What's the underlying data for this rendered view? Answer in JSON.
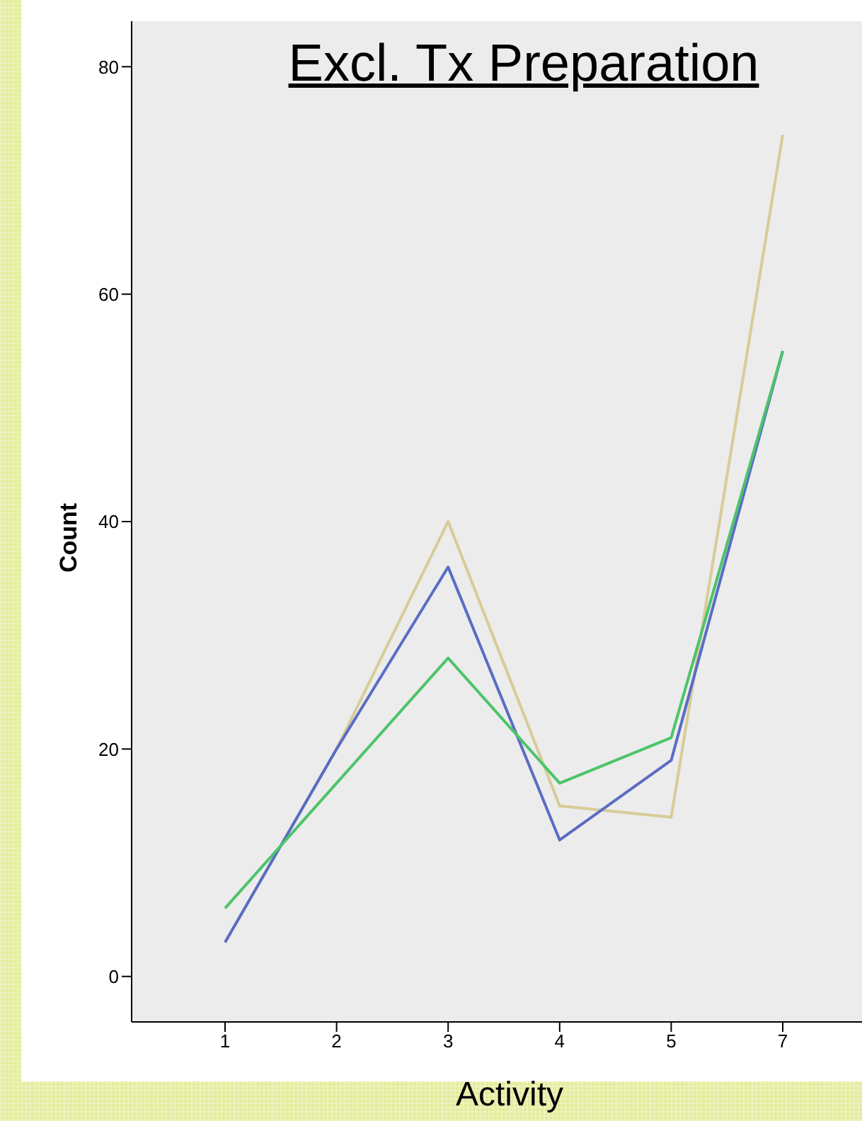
{
  "chart_data": {
    "type": "line",
    "title": "Excl. Tx Preparation",
    "xlabel": "Activity",
    "ylabel": "Count",
    "categories": [
      "1",
      "2",
      "3",
      "4",
      "5",
      "7"
    ],
    "series": [
      {
        "color": "#d6cc98",
        "values": [
          3,
          20,
          40,
          15,
          14,
          74
        ]
      },
      {
        "color": "#5a6cc4",
        "values": [
          3,
          20,
          36,
          12,
          19,
          55
        ]
      },
      {
        "color": "#4cc46a",
        "values": [
          6,
          17,
          28,
          17,
          21,
          55
        ]
      }
    ],
    "ylim": [
      -4,
      84
    ],
    "yticks": [
      0,
      20,
      40,
      60,
      80
    ],
    "grid": false,
    "marker": "none",
    "line_style": "solid"
  }
}
